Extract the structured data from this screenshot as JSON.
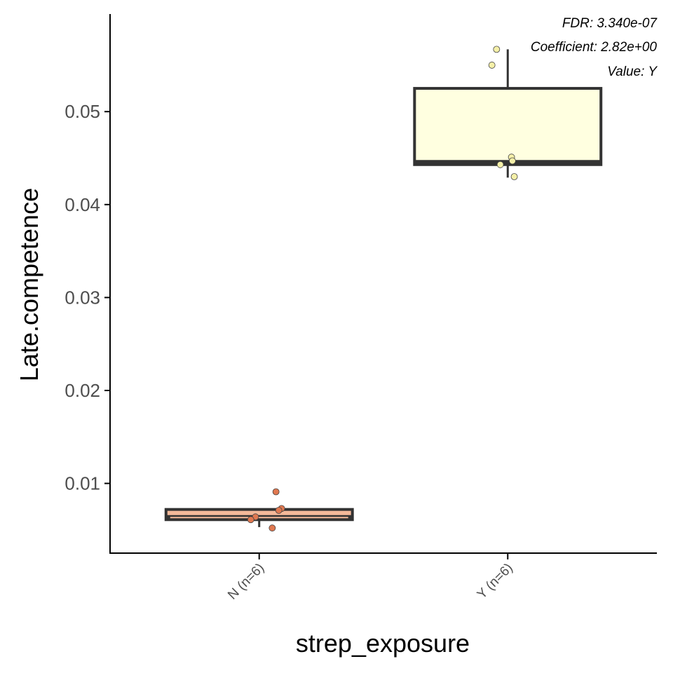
{
  "chart_data": {
    "type": "box",
    "title": "",
    "xlabel": "strep_exposure",
    "ylabel": "Late.competence",
    "ylim": [
      0.0025,
      0.0605
    ],
    "y_ticks": [
      0.01,
      0.02,
      0.03,
      0.04,
      0.05
    ],
    "y_tick_labels": [
      "0.01",
      "0.02",
      "0.03",
      "0.04",
      "0.05"
    ],
    "categories": [
      "N (n=6)",
      "Y (n=6)"
    ],
    "boxes": [
      {
        "category": "N (n=6)",
        "fill": "#f4b99a",
        "point_color": "#e07850",
        "whisker_low": 0.0053,
        "q1": 0.0061,
        "median": 0.0064,
        "q3": 0.0072,
        "whisker_high": 0.0073,
        "points": [
          0.0091,
          0.0073,
          0.0071,
          0.0064,
          0.0061,
          0.0052
        ]
      },
      {
        "category": "Y (n=6)",
        "fill": "#ffffe0",
        "point_color": "#f5f0a8",
        "whisker_low": 0.0429,
        "q1": 0.0443,
        "median": 0.0446,
        "q3": 0.0525,
        "whisker_high": 0.0567,
        "points": [
          0.0567,
          0.055,
          0.0451,
          0.0447,
          0.0443,
          0.043
        ]
      }
    ],
    "annotations": [
      "FDR: 3.340e-07",
      "Coefficient: 2.82e+00",
      "Value: Y"
    ],
    "grid": false,
    "legend": "none",
    "colors": {
      "box_outline": "#333333",
      "axis": "#000000",
      "text": "#4d4d4d"
    }
  }
}
